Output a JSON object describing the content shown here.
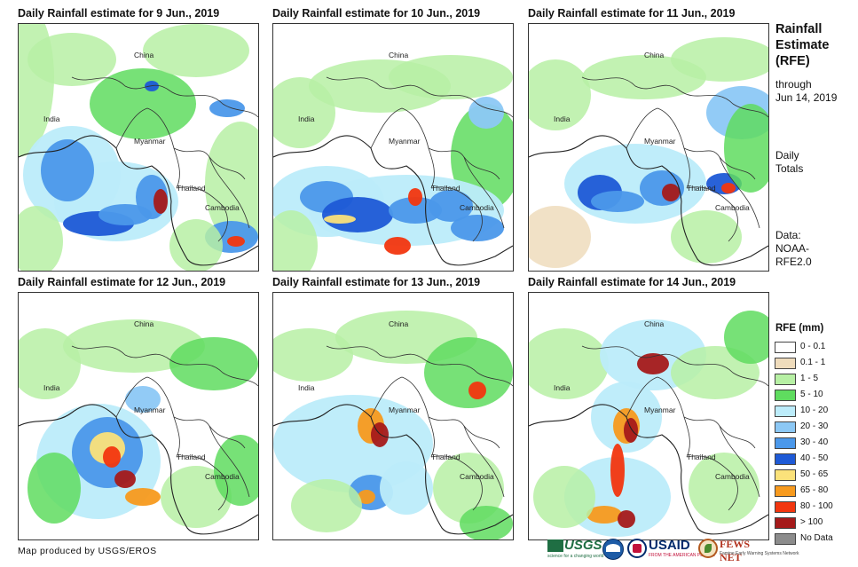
{
  "panels": [
    {
      "title": "Daily Rainfall estimate for 9 Jun., 2019",
      "labels": [
        "China",
        "India",
        "Myanmar",
        "Thailand",
        "Cambodia"
      ]
    },
    {
      "title": "Daily Rainfall estimate for 10 Jun., 2019",
      "labels": [
        "China",
        "India",
        "Myanmar",
        "Thailand",
        "Cambodia"
      ]
    },
    {
      "title": "Daily Rainfall estimate for 11 Jun., 2019",
      "labels": [
        "China",
        "India",
        "Myanmar",
        "Thailand",
        "Cambodia"
      ]
    },
    {
      "title": "Daily Rainfall estimate for 12 Jun., 2019",
      "labels": [
        "China",
        "India",
        "Myanmar",
        "Thailand",
        "Cambodia"
      ]
    },
    {
      "title": "Daily Rainfall estimate for 13 Jun., 2019",
      "labels": [
        "China",
        "India",
        "Myanmar",
        "Thailand",
        "Cambodia"
      ]
    },
    {
      "title": "Daily Rainfall estimate for 14 Jun., 2019",
      "labels": [
        "China",
        "India",
        "Myanmar",
        "Thailand",
        "Cambodia"
      ]
    }
  ],
  "sidebar": {
    "title_line1": "Rainfall",
    "title_line2": "Estimate",
    "title_line3": "(RFE)",
    "through_line1": "through",
    "through_line2": "Jun 14, 2019",
    "totals_line1": "Daily",
    "totals_line2": "Totals",
    "data_line1": "Data:",
    "data_line2": "NOAA-",
    "data_line3": "RFE2.0"
  },
  "legend": {
    "title": "RFE (mm)",
    "items": [
      {
        "label": "0 - 0.1",
        "color": "#ffffff"
      },
      {
        "label": "0.1 - 1",
        "color": "#efdcbc"
      },
      {
        "label": "1 - 5",
        "color": "#b7f0a4"
      },
      {
        "label": "5 - 10",
        "color": "#5fdc5f"
      },
      {
        "label": "10 - 20",
        "color": "#bcecfa"
      },
      {
        "label": "20 - 30",
        "color": "#8cc8f5"
      },
      {
        "label": "30 - 40",
        "color": "#4b98ea"
      },
      {
        "label": "40 - 50",
        "color": "#1e5ad6"
      },
      {
        "label": "50 - 65",
        "color": "#fbe27a"
      },
      {
        "label": "65 - 80",
        "color": "#f79a1e"
      },
      {
        "label": "80 - 100",
        "color": "#f2360f"
      },
      {
        "label": "> 100",
        "color": "#a51a1a"
      },
      {
        "label": "No Data",
        "color": "#8c8c8c"
      }
    ]
  },
  "credit": "Map produced by USGS/EROS",
  "logos": {
    "usgs": "USGS",
    "usgs_tagline": "science for a changing world",
    "usaid": "USAID",
    "usaid_tagline": "FROM THE AMERICAN PEOPLE",
    "fews": "FEWS NET",
    "fews_tagline": "Famine Early Warning Systems Network"
  }
}
